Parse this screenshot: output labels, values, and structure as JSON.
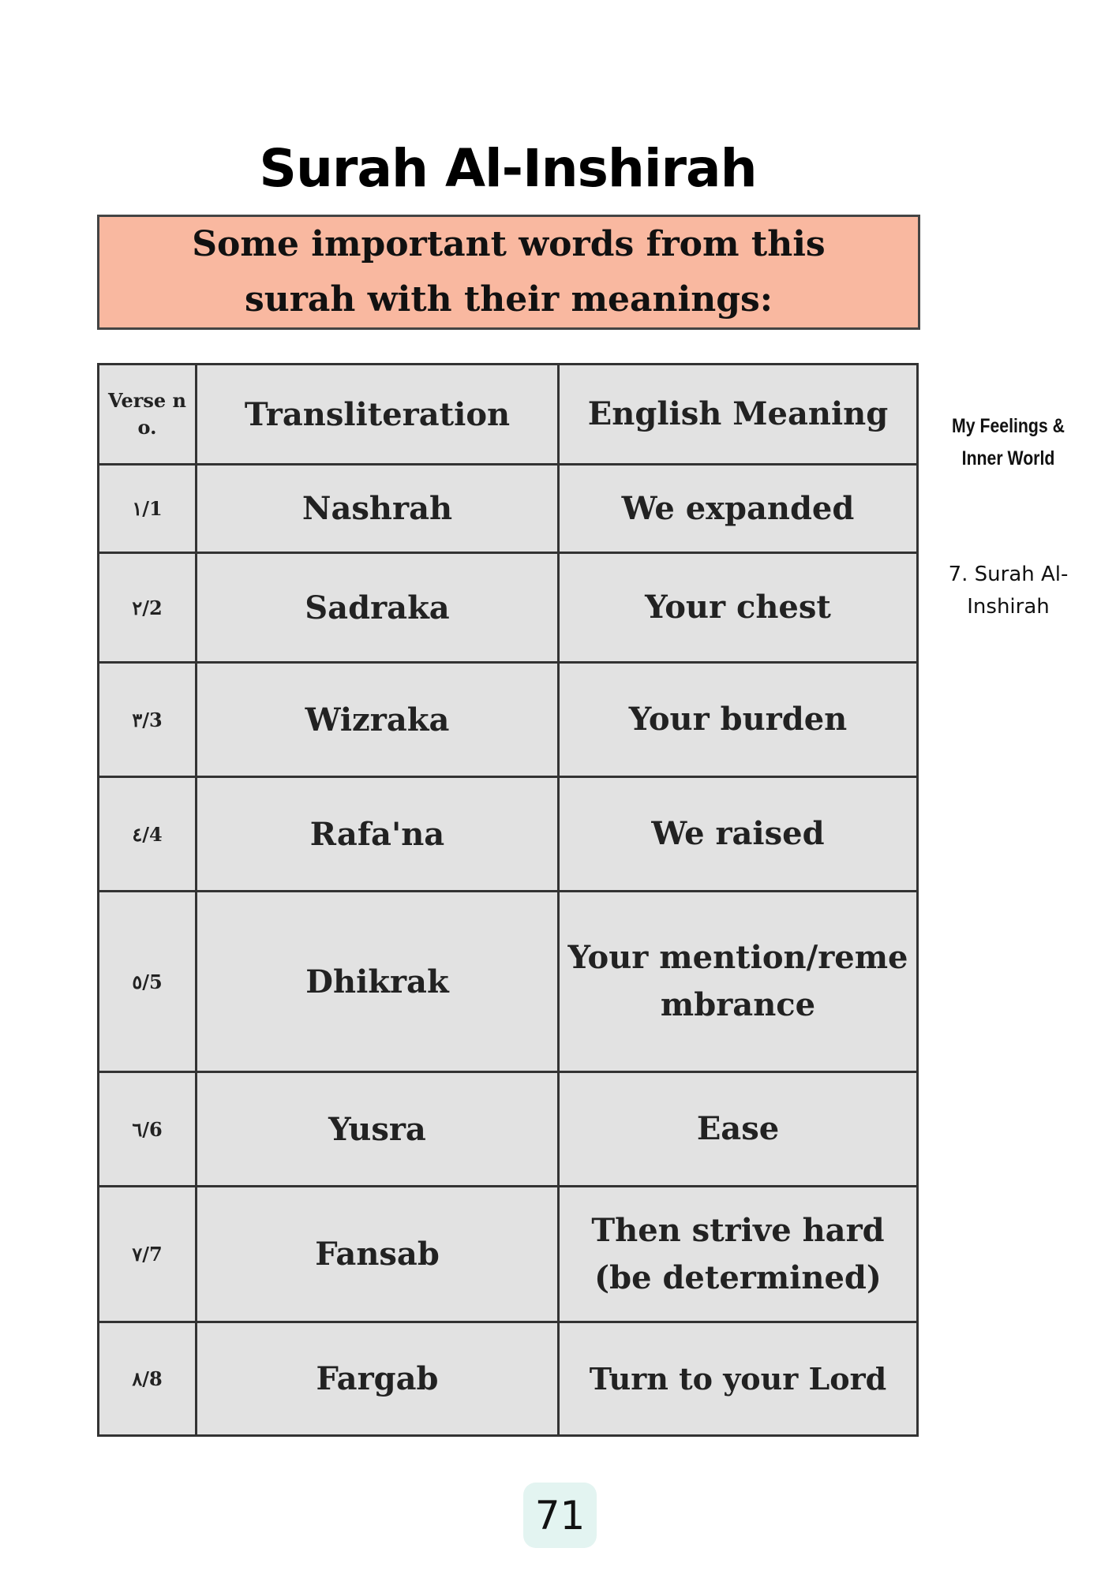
{
  "title": "Surah Al-Inshirah",
  "banner": "Some important words from this surah with their meanings:",
  "table": {
    "headers": [
      "Verse no.",
      "Transliteration",
      "English Meaning"
    ],
    "rows": [
      {
        "verse": "١/1",
        "word": "Nashrah",
        "meaning": "We expanded"
      },
      {
        "verse": "٢/2",
        "word": "Sadraka",
        "meaning": "Your chest"
      },
      {
        "verse": "٣/3",
        "word": "Wizraka",
        "meaning": "Your burden"
      },
      {
        "verse": "٤/4",
        "word": "Rafa'na",
        "meaning": "We raised"
      },
      {
        "verse": "٥/5",
        "word": "Dhikrak",
        "meaning": "Your mention/remembrance"
      },
      {
        "verse": "٦/6",
        "word": "Yusra",
        "meaning": "Ease"
      },
      {
        "verse": "٧/7",
        "word": "Fansab",
        "meaning": "Then strive hard (be determined)"
      },
      {
        "verse": "٨/8",
        "word": "Fargab",
        "meaning": "Turn to your Lord"
      }
    ]
  },
  "sidebar": {
    "section": "My Feelings & Inner World",
    "chapter": "7. Surah Al-Inshirah"
  },
  "page_number": "71",
  "colors": {
    "banner": "#f9b8a0",
    "cell": "#e2e2e2",
    "page_badge": "#e3f4f1"
  }
}
